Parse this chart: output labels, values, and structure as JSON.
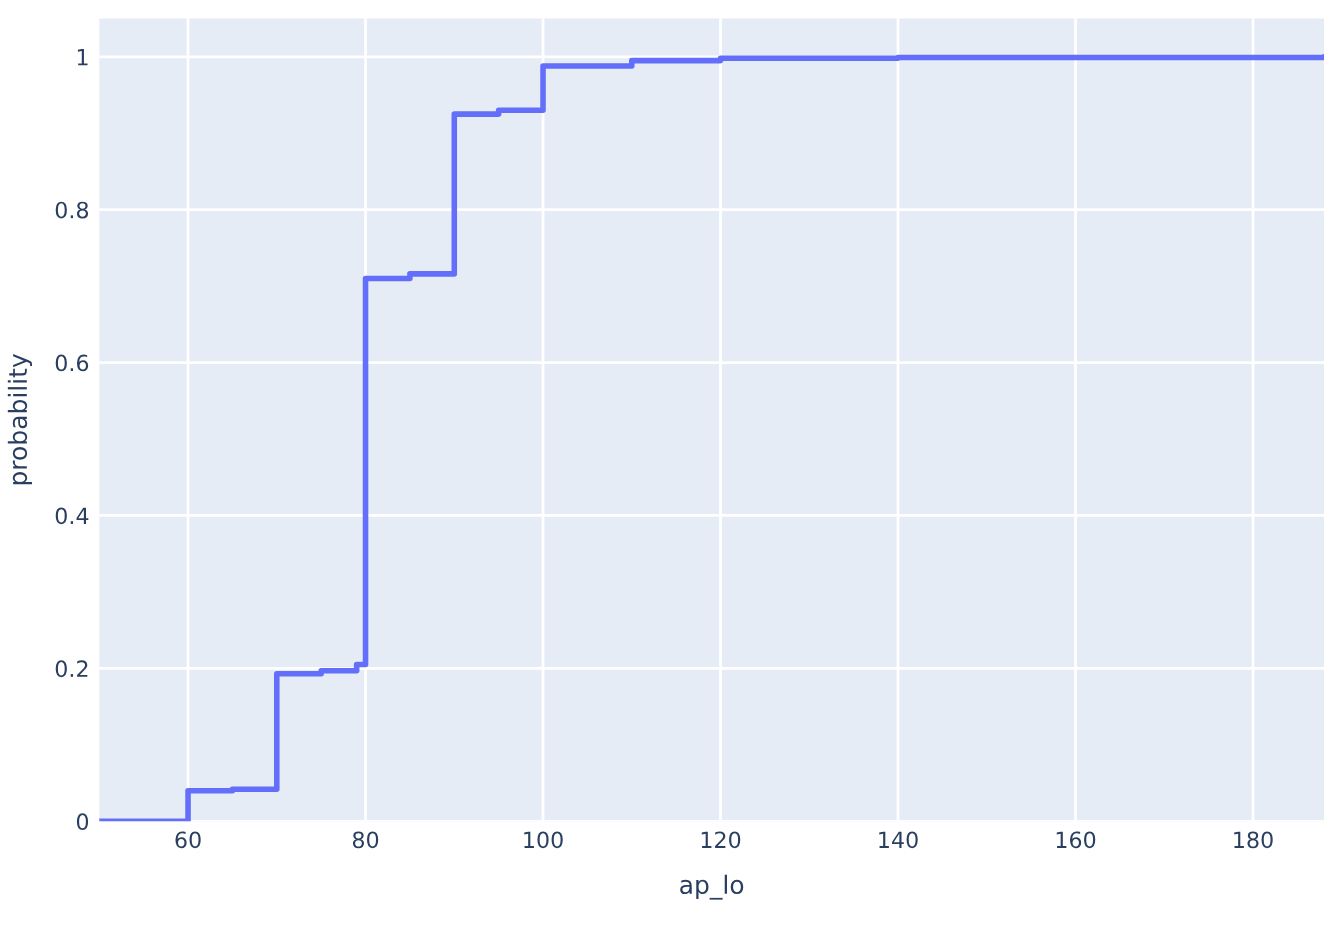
{
  "chart_data": {
    "type": "step",
    "xlabel": "ap_lo",
    "ylabel": "probability",
    "series": [
      {
        "color": "#636efa",
        "x": [
          50,
          60,
          65,
          70,
          75,
          79,
          80,
          85,
          90,
          95,
          100,
          110,
          120,
          140,
          188
        ],
        "values": [
          0,
          0.04,
          0.042,
          0.193,
          0.197,
          0.205,
          0.71,
          0.716,
          0.925,
          0.93,
          0.988,
          0.995,
          0.998,
          0.999,
          1
        ]
      }
    ],
    "xlim": [
      50,
      188
    ],
    "ylim": [
      0,
      1.05
    ],
    "xticks": [
      60,
      80,
      100,
      120,
      140,
      160,
      180
    ],
    "yticks": [
      0,
      0.2,
      0.4,
      0.6,
      0.8,
      1
    ],
    "grid": true,
    "legend": false
  }
}
